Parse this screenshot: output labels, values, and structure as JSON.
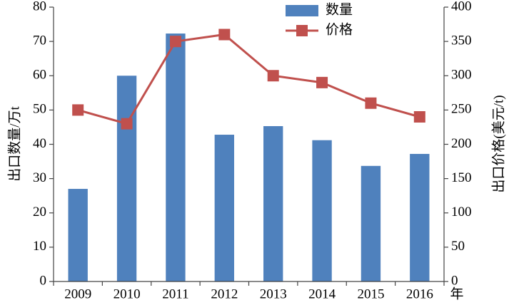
{
  "chart_data": {
    "type": "bar_line",
    "categories": [
      "2009",
      "2010",
      "2011",
      "2012",
      "2013",
      "2014",
      "2015",
      "2016"
    ],
    "x_label": "年",
    "y_label": "出口数量/万t",
    "y2_label": "出口价格(美元/t)",
    "series": [
      {
        "name": "数量",
        "type": "bar",
        "color": "#4f81bd",
        "values": [
          27,
          60,
          72.3,
          42.8,
          45.3,
          41.2,
          33.7,
          37.2
        ]
      },
      {
        "name": "价格",
        "type": "line",
        "axis": "y2",
        "color": "#c0504d",
        "values": [
          250,
          230,
          350,
          360,
          300,
          290,
          260,
          240
        ]
      }
    ],
    "ylim": [
      0,
      80
    ],
    "yticks": [
      0,
      10,
      20,
      30,
      40,
      50,
      60,
      70,
      80
    ],
    "y2lim": [
      0,
      400
    ],
    "y2ticks": [
      0,
      50,
      100,
      150,
      200,
      250,
      300,
      350,
      400
    ],
    "grid": false
  }
}
